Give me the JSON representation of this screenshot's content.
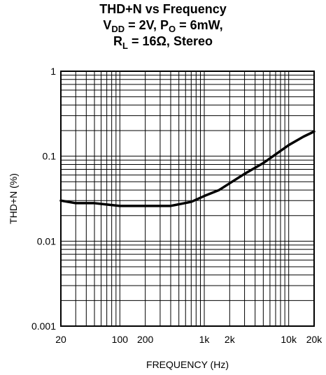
{
  "title": {
    "line1": "THD+N vs Frequency",
    "line2_pre": "V",
    "line2_sub1": "DD",
    "line2_mid": " = 2V, P",
    "line2_sub2": "O",
    "line2_post": " = 6mW,",
    "line3_pre": "R",
    "line3_sub": "L",
    "line3_post": " = 16Ω, Stereo"
  },
  "chart_data": {
    "type": "line",
    "title": "THD+N vs Frequency",
    "subtitle": "VDD = 2V, PO = 6mW, RL = 16Ω, Stereo",
    "xlabel": "FREQUENCY (Hz)",
    "ylabel": "THD+N (%)",
    "xscale": "log",
    "yscale": "log",
    "xlim": [
      20,
      20000
    ],
    "ylim": [
      0.001,
      1
    ],
    "grid": true,
    "x_ticks": [
      {
        "value": 20,
        "label": "20"
      },
      {
        "value": 100,
        "label": "100"
      },
      {
        "value": 200,
        "label": "200"
      },
      {
        "value": 1000,
        "label": "1k"
      },
      {
        "value": 2000,
        "label": "2k"
      },
      {
        "value": 10000,
        "label": "10k"
      },
      {
        "value": 20000,
        "label": "20k"
      }
    ],
    "y_ticks": [
      {
        "value": 0.001,
        "label": "0.001"
      },
      {
        "value": 0.01,
        "label": "0.01"
      },
      {
        "value": 0.1,
        "label": "0.1"
      },
      {
        "value": 1,
        "label": "1"
      }
    ],
    "x": [
      20,
      30,
      50,
      70,
      100,
      200,
      400,
      700,
      1000,
      1500,
      2000,
      3000,
      5000,
      7000,
      10000,
      15000,
      20000
    ],
    "y": [
      0.03,
      0.028,
      0.028,
      0.027,
      0.026,
      0.026,
      0.026,
      0.029,
      0.034,
      0.04,
      0.048,
      0.062,
      0.083,
      0.105,
      0.135,
      0.17,
      0.195
    ]
  }
}
